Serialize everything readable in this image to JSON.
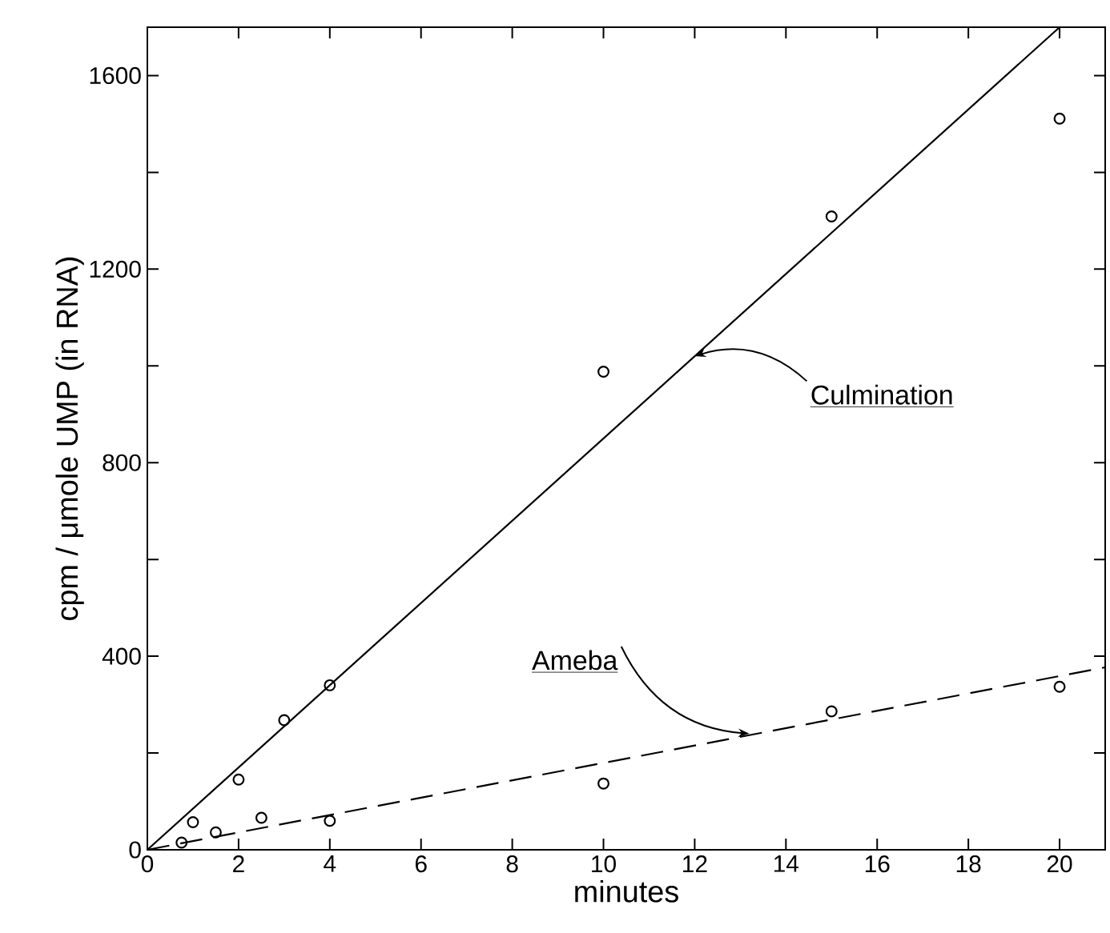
{
  "chart_data": {
    "type": "scatter",
    "xlabel": "minutes",
    "ylabel": "cpm / μmole  UMP (in RNA)",
    "xlim": [
      0,
      21
    ],
    "ylim": [
      0,
      1700
    ],
    "xticks": [
      0,
      2,
      4,
      6,
      8,
      10,
      12,
      14,
      16,
      18,
      20
    ],
    "yticks": [
      0,
      {
        "value": 200,
        "label": null
      },
      400,
      {
        "value": 600,
        "label": null
      },
      800,
      {
        "value": 1000,
        "label": null
      },
      1200,
      {
        "value": 1400,
        "label": null
      },
      1600
    ],
    "series": [
      {
        "color": "#000000",
        "marker": "circle",
        "x": [
          1,
          2,
          3,
          4,
          10,
          15,
          20
        ],
        "values": [
          57,
          145,
          268,
          340,
          988,
          1309,
          1511
        ]
      },
      {
        "color": "#000000",
        "marker": "circle",
        "x": [
          0.75,
          1.5,
          2.5,
          4,
          10,
          15,
          20
        ],
        "values": [
          15,
          36,
          66,
          60,
          137,
          286,
          337
        ]
      },
      {
        "type": "line",
        "color": "#000000",
        "line_style": "solid",
        "x": [
          0,
          20
        ],
        "values": [
          0,
          1700
        ]
      },
      {
        "type": "line",
        "color": "#000000",
        "line_style": "dashed",
        "x": [
          0,
          21
        ],
        "values": [
          0,
          377
        ]
      }
    ],
    "annotations": [
      {
        "text": "Culmination",
        "x": 12,
        "y": 1020
      },
      {
        "text": "Ameba",
        "x": 13.2,
        "y": 240
      }
    ]
  }
}
